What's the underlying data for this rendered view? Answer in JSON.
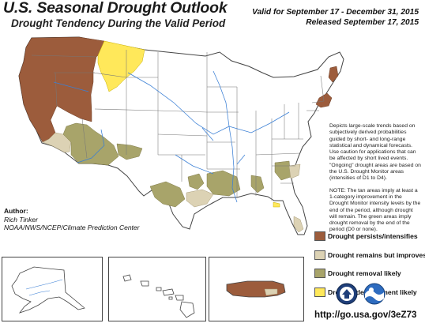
{
  "title": "U.S. Seasonal Drought Outlook",
  "subtitle": "Drought Tendency During the Valid Period",
  "valid_line1": "Valid for September 17 - December 31, 2015",
  "valid_line2": "Released September 17, 2015",
  "notes": [
    "Depicts large-scale trends based on subjectively derived probabilities guided by short- and long-range statistical and dynamical forecasts. Use caution for applications that can be affected by short lived events. \"Ongoing\" drought areas are based on the U.S. Drought Monitor areas (intensities of D1 to D4).",
    "NOTE: The tan areas imply at least a 1-category improvement in the Drought Monitor intensity levels by the end of the period, although drought will remain. The green areas imply drought removal by the end of the period (D0 or none)."
  ],
  "author": {
    "label": "Author:",
    "name": "Rich Tinker",
    "org": "NOAA/NWS/NCEP/Climate Prediction Center"
  },
  "legend": [
    {
      "label": "Drought persists/intensifies",
      "color": "#9c5c3c"
    },
    {
      "label": "Drought remains but improves",
      "color": "#dcd2b4"
    },
    {
      "label": "Drought removal likely",
      "color": "#a8a46a"
    },
    {
      "label": "Drought development likely",
      "color": "#ffe85a"
    }
  ],
  "url": "http://go.usa.gov/3eZ73",
  "colors": {
    "land": "#ffffff",
    "water": "#8fc9f0",
    "state_border": "#777777",
    "river": "#3a7fd5"
  },
  "icons": {
    "logo_left": "noaa-logo-icon",
    "logo_right": "nws-logo-icon"
  }
}
